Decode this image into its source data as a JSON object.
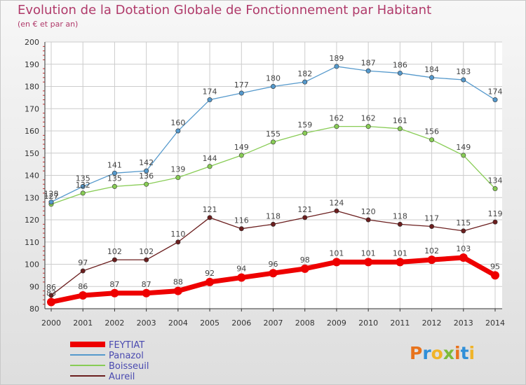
{
  "title": "Evolution de la Dotation Globale de Fonctionnement par Habitant",
  "subtitle": "(en € et par an)",
  "logo": {
    "text": "Proxiti",
    "colors": [
      "#e8731c",
      "#2f8fd8",
      "#f0b429",
      "#7dbb3a"
    ]
  },
  "chart_data": {
    "type": "line",
    "x": [
      2000,
      2001,
      2002,
      2003,
      2004,
      2005,
      2006,
      2007,
      2008,
      2009,
      2010,
      2011,
      2012,
      2013,
      2014
    ],
    "ylim": [
      80,
      200
    ],
    "yticks": [
      80,
      90,
      100,
      110,
      120,
      130,
      140,
      150,
      160,
      170,
      180,
      190,
      200
    ],
    "grid": true,
    "legend_position": "bottom-left",
    "series": [
      {
        "name": "Aureil",
        "color": "#6b1e1e",
        "values": [
          86,
          97,
          102,
          102,
          110,
          121,
          116,
          118,
          121,
          124,
          120,
          118,
          117,
          115,
          119
        ]
      },
      {
        "name": "Boisseuil",
        "color": "#88cc55",
        "values": [
          127,
          132,
          135,
          136,
          139,
          144,
          149,
          155,
          159,
          162,
          162,
          161,
          156,
          149,
          134
        ]
      },
      {
        "name": "Panazol",
        "color": "#5599cc",
        "values": [
          128,
          135,
          141,
          142,
          160,
          174,
          177,
          180,
          182,
          189,
          187,
          186,
          184,
          183,
          174
        ]
      },
      {
        "name": "FEYTIAT",
        "color": "#ee0000",
        "values": [
          83,
          86,
          87,
          87,
          88,
          92,
          94,
          96,
          98,
          101,
          101,
          101,
          102,
          103,
          95
        ]
      }
    ]
  }
}
